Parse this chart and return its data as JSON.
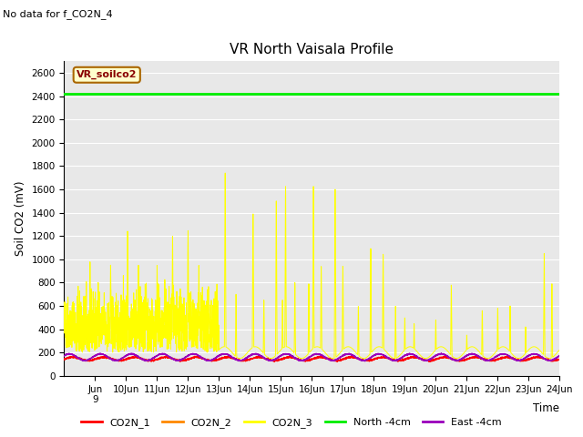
{
  "title": "VR North Vaisala Profile",
  "no_data_text": "No data for f_CO2N_4",
  "ylabel": "Soil CO2 (mV)",
  "xlabel": "Time",
  "xlim_days": [
    8,
    24
  ],
  "ylim": [
    0,
    2700
  ],
  "yticks": [
    0,
    200,
    400,
    600,
    800,
    1000,
    1200,
    1400,
    1600,
    1800,
    2000,
    2200,
    2400,
    2600
  ],
  "xtick_positions": [
    9,
    10,
    11,
    12,
    13,
    14,
    15,
    16,
    17,
    18,
    19,
    20,
    21,
    22,
    23,
    24
  ],
  "north_4cm_value": 2420,
  "colors": {
    "co2n1": "#ff0000",
    "co2n2": "#ff8800",
    "co2n3": "#ffff00",
    "north4cm": "#00ee00",
    "east4cm": "#9900bb",
    "plot_bg": "#e8e8e8"
  },
  "legend_box_color": "#ffffcc",
  "legend_box_edge": "#aa6600",
  "legend_box_text": "VR_soilco2",
  "legend_box_text_color": "#880000",
  "figsize": [
    6.4,
    4.8
  ],
  "dpi": 100
}
